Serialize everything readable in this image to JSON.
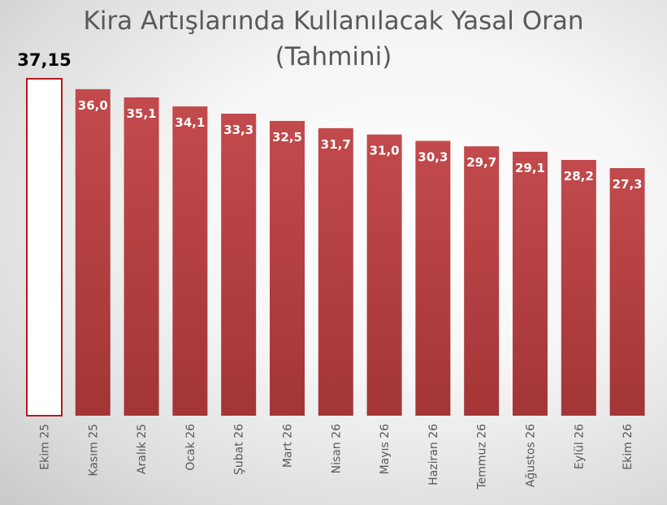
{
  "title_line1": "Kira Artışlarında Kullanılacak Yasal Oran",
  "title_line2": "(Tahmini)",
  "colors": {
    "bar": "#b94244",
    "bar_dark": "#9d3133",
    "outline": "#b01c1e",
    "label": "#ffffff",
    "axis_label": "#595959"
  },
  "chart_data": {
    "type": "bar",
    "categories": [
      "Ekim 25",
      "Kasım 25",
      "Aralık 25",
      "Ocak 26",
      "Şubat 26",
      "Mart 26",
      "Nisan 26",
      "Mayıs 26",
      "Haziran 26",
      "Temmuz 26",
      "Ağustos 26",
      "Eylül 26",
      "Ekim 26"
    ],
    "values": [
      37.15,
      36.0,
      35.1,
      34.1,
      33.3,
      32.5,
      31.7,
      31.0,
      30.3,
      29.7,
      29.1,
      28.2,
      27.3
    ],
    "labels": [
      "37,15",
      "36,0",
      "35,1",
      "34,1",
      "33,3",
      "32,5",
      "31,7",
      "31,0",
      "30,3",
      "29,7",
      "29,1",
      "28,2",
      "27,3"
    ],
    "ylim": [
      0,
      37.15
    ],
    "grid": false,
    "legend": "none",
    "first_bar_outlined": true
  }
}
